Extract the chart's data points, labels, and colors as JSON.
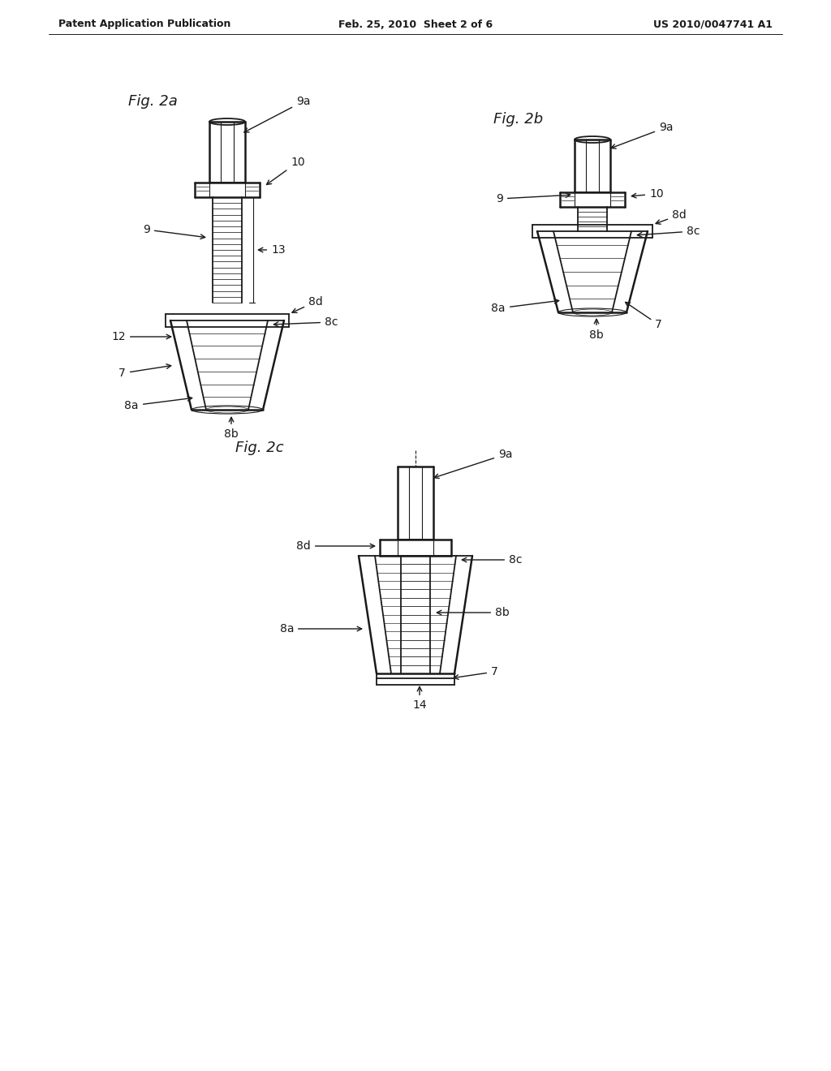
{
  "background_color": "#ffffff",
  "header_left": "Patent Application Publication",
  "header_center": "Feb. 25, 2010  Sheet 2 of 6",
  "header_right": "US 2010/0047741 A1",
  "fig2a_label": "Fig. 2a",
  "fig2b_label": "Fig. 2b",
  "fig2c_label": "Fig. 2c",
  "line_color": "#1a1a1a",
  "label_color": "#1a1a1a",
  "font_size_header": 9,
  "font_size_fig": 13,
  "font_size_label": 10
}
